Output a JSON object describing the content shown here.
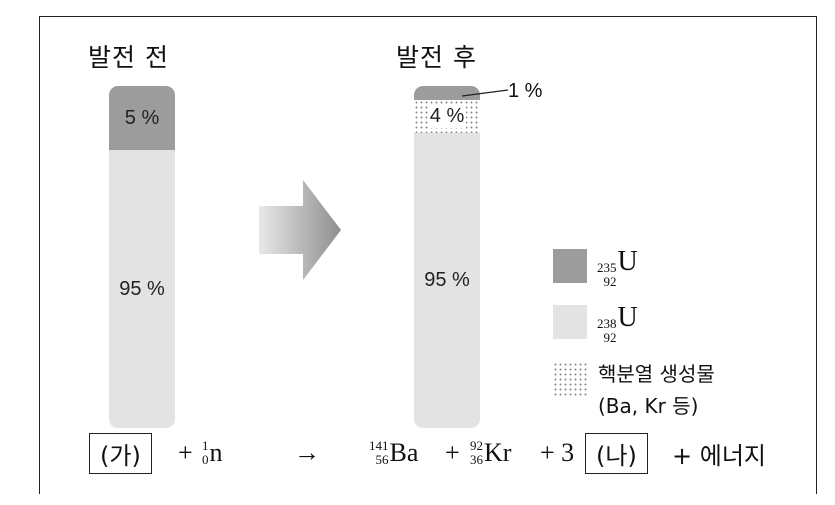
{
  "before": {
    "title": "발전 전",
    "segments": [
      {
        "label": "5 %",
        "value": 5,
        "kind": "U-235"
      },
      {
        "label": "95 %",
        "value": 95,
        "kind": "U-238"
      }
    ]
  },
  "after": {
    "title": "발전 후",
    "segments": [
      {
        "label": "1 %",
        "value": 1,
        "kind": "U-235"
      },
      {
        "label": "4 %",
        "value": 4,
        "kind": "fission-products"
      },
      {
        "label": "95 %",
        "value": 95,
        "kind": "U-238"
      }
    ]
  },
  "legend": {
    "u235": {
      "mass": "235",
      "atomic": "92",
      "symbol": "U",
      "color": "#9c9c9c"
    },
    "u238": {
      "mass": "238",
      "atomic": "92",
      "symbol": "U",
      "color": "#e3e3e3"
    },
    "fission": {
      "line1": "핵분열 생성물",
      "line2": "(Ba, Kr 등)"
    }
  },
  "equation": {
    "box_a": "(가)",
    "plus1": "+",
    "neutron": {
      "mass": "1",
      "atomic": "0",
      "symbol": "n"
    },
    "arrow": "→",
    "ba": {
      "mass": "141",
      "atomic": "56",
      "symbol": "Ba"
    },
    "plus2": "+",
    "kr": {
      "mass": "92",
      "atomic": "36",
      "symbol": "Kr"
    },
    "plus3": "+ 3",
    "box_b": "(나)",
    "tail": "+ 에너지"
  }
}
